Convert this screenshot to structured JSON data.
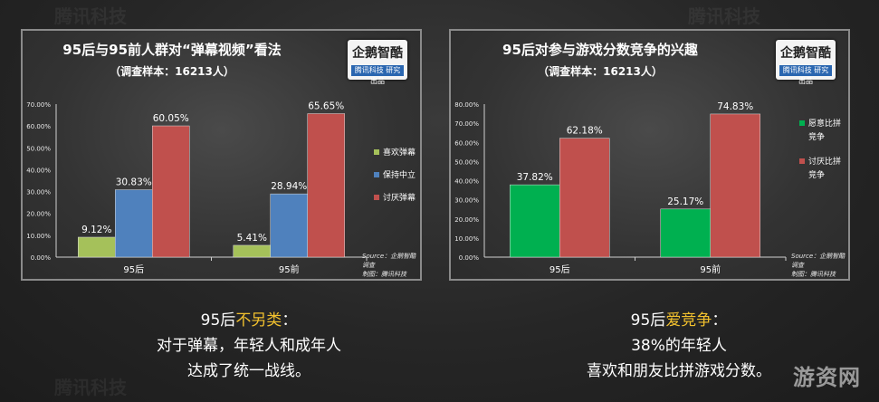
{
  "left_panel": {
    "title": "95后与95前人群对“弹幕视频”看法",
    "subtitle": "（调查样本：16213人）",
    "logo": {
      "name": "企鹅智酷",
      "sub": "腾讯科技 研究出品"
    },
    "source": [
      "Source：企鹅智酷调查",
      "制图：腾讯科技"
    ]
  },
  "right_panel": {
    "title": "95后对参与游戏分数竞争的兴趣",
    "subtitle": "（调查样本：16213人）",
    "logo": {
      "name": "企鹅智酷",
      "sub": "腾讯科技 研究出品"
    },
    "source": [
      "Source：企鹅智酷调查",
      "制图：腾讯科技"
    ]
  },
  "chart_data": [
    {
      "type": "bar",
      "title": "95后与95前人群对“弹幕视频”看法",
      "categories": [
        "95后",
        "95前"
      ],
      "series": [
        {
          "name": "喜欢弹幕",
          "values": [
            9.12,
            5.41
          ],
          "color": "#a5c15a"
        },
        {
          "name": "保持中立",
          "values": [
            30.83,
            28.94
          ],
          "color": "#4f81bd"
        },
        {
          "name": "讨厌弹幕",
          "values": [
            60.05,
            65.65
          ],
          "color": "#c0504d"
        }
      ],
      "ylim": [
        0,
        70
      ],
      "ytick_step": 10,
      "unit": "%",
      "legend": "right",
      "grid": false
    },
    {
      "type": "bar",
      "title": "95后对参与游戏分数竞争的兴趣",
      "categories": [
        "95后",
        "95前"
      ],
      "series": [
        {
          "name": "愿意比拼竞争",
          "values": [
            37.82,
            25.17
          ],
          "color": "#00b050"
        },
        {
          "name": "讨厌比拼竞争",
          "values": [
            62.18,
            74.83
          ],
          "color": "#c0504d"
        }
      ],
      "ylim": [
        0,
        80
      ],
      "ytick_step": 10,
      "unit": "%",
      "legend": "right",
      "grid": false
    }
  ],
  "captions": {
    "left": {
      "prefix": "95后",
      "highlight": "不另类",
      "suffix": "：",
      "lines": [
        "对于弹幕，年轻人和成年人",
        "达成了统一战线。"
      ]
    },
    "right": {
      "prefix": "95后",
      "highlight": "爱竞争",
      "suffix": "：",
      "lines": [
        "38%的年轻人",
        "喜欢和朋友比拼游戏分数。"
      ]
    }
  },
  "watermark": "游资网",
  "faint_watermark": "腾讯科技",
  "colors": {
    "highlight": "#f2c12e",
    "axis": "#d0d0d0"
  }
}
